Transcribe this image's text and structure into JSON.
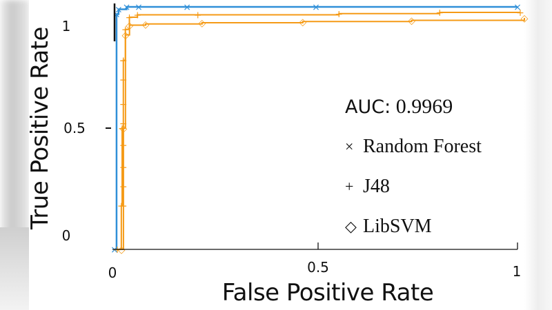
{
  "chart_data": {
    "type": "line",
    "title": "",
    "xlabel": "False Positive Rate",
    "ylabel": "True Positive Rate",
    "xlim": [
      0,
      1
    ],
    "ylim": [
      0,
      1
    ],
    "x_ticks": [
      "0",
      "0.5",
      "1"
    ],
    "y_ticks": [
      "0",
      "0.5",
      "1"
    ],
    "grid": false,
    "legend_position": "center-right",
    "annotation": "AUC: 0.9969",
    "series": [
      {
        "name": "Random Forest",
        "marker": "×",
        "color": "#2f8fd8",
        "points": [
          [
            0,
            0
          ],
          [
            0.005,
            0.97
          ],
          [
            0.01,
            0.99
          ],
          [
            0.03,
            1.0
          ],
          [
            0.06,
            1.0
          ],
          [
            0.18,
            1.0
          ],
          [
            0.5,
            1.0
          ],
          [
            1.0,
            1.0
          ]
        ]
      },
      {
        "name": "J48",
        "marker": "+",
        "color": "#f59a16",
        "points": [
          [
            0,
            0
          ],
          [
            0.01,
            0.18
          ],
          [
            0.012,
            0.5
          ],
          [
            0.015,
            0.78
          ],
          [
            0.02,
            0.93
          ],
          [
            0.03,
            0.98
          ],
          [
            0.05,
            0.99
          ],
          [
            0.2,
            0.99
          ],
          [
            0.55,
            0.995
          ],
          [
            0.8,
            1.0
          ],
          [
            1.0,
            1.0
          ]
        ]
      },
      {
        "name": "LibSVM",
        "marker": "◇",
        "color": "#f59a16",
        "points": [
          [
            0,
            0
          ],
          [
            0.005,
            0.5
          ],
          [
            0.01,
            0.93
          ],
          [
            0.02,
            0.97
          ],
          [
            0.06,
            0.975
          ],
          [
            0.2,
            0.98
          ],
          [
            0.45,
            0.985
          ],
          [
            0.72,
            0.99
          ],
          [
            1.0,
            1.0
          ]
        ]
      }
    ]
  },
  "legend": {
    "auc_key": "AUC:",
    "auc_value": "0.9969",
    "items": [
      {
        "marker": "×",
        "label": "Random Forest"
      },
      {
        "marker": "+",
        "label": "J48"
      },
      {
        "marker": "◇",
        "label": "LibSVM"
      }
    ]
  },
  "axes": {
    "xlabel": "False Positive Rate",
    "ylabel": "True Positive Rate",
    "x_ticks": [
      "0",
      "0.5",
      "1"
    ],
    "y_ticks": [
      "0",
      "0.5",
      "1"
    ]
  },
  "colors": {
    "blue": "#2f8fd8",
    "orange": "#f59a16",
    "axis": "#111111"
  }
}
